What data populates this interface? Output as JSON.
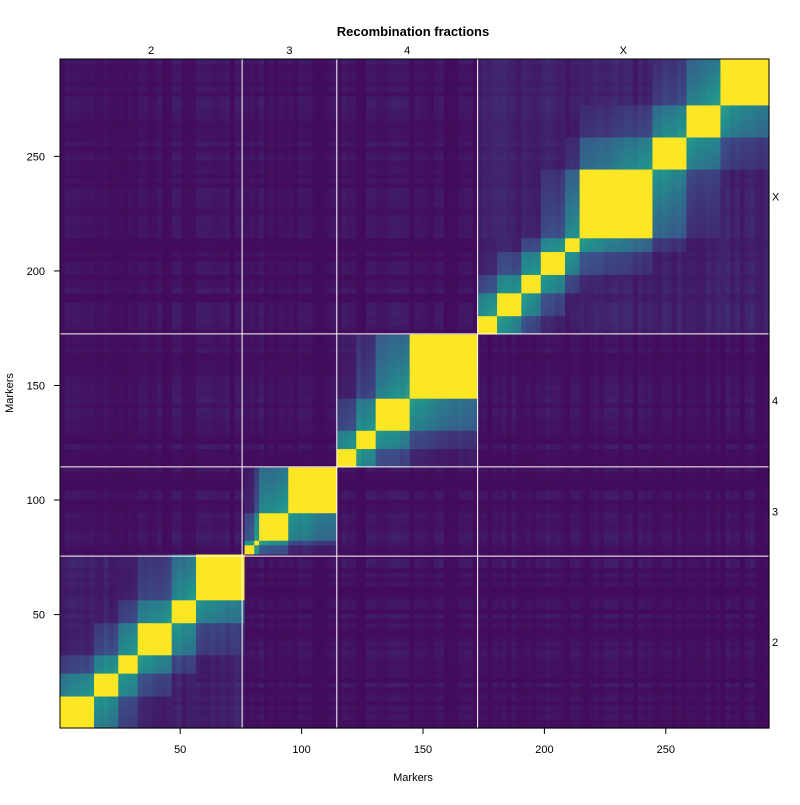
{
  "chart_data": {
    "type": "heatmap",
    "title": "Recombination fractions",
    "xlabel": "Markers",
    "ylabel": "Markers",
    "x_range": [
      0.5,
      292.5
    ],
    "y_range": [
      0.5,
      292.5
    ],
    "x_ticks": [
      50,
      100,
      150,
      200,
      250
    ],
    "y_ticks": [
      50,
      100,
      150,
      200,
      250
    ],
    "chromosomes": [
      {
        "name": "2",
        "start": 1,
        "end": 75
      },
      {
        "name": "3",
        "start": 76,
        "end": 114
      },
      {
        "name": "4",
        "start": 115,
        "end": 172
      },
      {
        "name": "X",
        "start": 173,
        "end": 292
      }
    ],
    "diagonal_blocks": [
      {
        "chrom": "2",
        "start": 1,
        "end": 14
      },
      {
        "chrom": "2",
        "start": 15,
        "end": 23
      },
      {
        "chrom": "2",
        "start": 24,
        "end": 31
      },
      {
        "chrom": "2",
        "start": 32,
        "end": 45
      },
      {
        "chrom": "2",
        "start": 46,
        "end": 55
      },
      {
        "chrom": "2",
        "start": 56,
        "end": 75
      },
      {
        "chrom": "3",
        "start": 76,
        "end": 79
      },
      {
        "chrom": "3",
        "start": 80,
        "end": 82
      },
      {
        "chrom": "3",
        "start": 83,
        "end": 94
      },
      {
        "chrom": "3",
        "start": 95,
        "end": 114
      },
      {
        "chrom": "4",
        "start": 115,
        "end": 121
      },
      {
        "chrom": "4",
        "start": 122,
        "end": 129
      },
      {
        "chrom": "4",
        "start": 130,
        "end": 143
      },
      {
        "chrom": "4",
        "start": 144,
        "end": 172
      },
      {
        "chrom": "X",
        "start": 173,
        "end": 180
      },
      {
        "chrom": "X",
        "start": 181,
        "end": 189
      },
      {
        "chrom": "X",
        "start": 190,
        "end": 198
      },
      {
        "chrom": "X",
        "start": 199,
        "end": 207
      },
      {
        "chrom": "X",
        "start": 208,
        "end": 213
      },
      {
        "chrom": "X",
        "start": 214,
        "end": 243
      },
      {
        "chrom": "X",
        "start": 244,
        "end": 258
      },
      {
        "chrom": "X",
        "start": 259,
        "end": 272
      },
      {
        "chrom": "X",
        "start": 273,
        "end": 292
      }
    ],
    "grid": false,
    "color_scale": {
      "low": "#440154",
      "mid_low": "#3b528b",
      "mid": "#21908c",
      "mid_high": "#5dc863",
      "high": "#fde725"
    },
    "separator_color": "#ffffff"
  }
}
